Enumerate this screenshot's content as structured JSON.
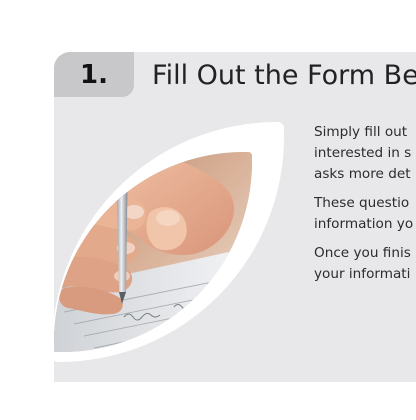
{
  "step": {
    "number": "1.",
    "title": "Fill Out the Form Be"
  },
  "image": {
    "description_icon": "hand-writing-with-pen-image"
  },
  "paragraphs": [
    {
      "lines": [
        "Simply fill out",
        "interested in s",
        "asks more det"
      ]
    },
    {
      "lines": [
        "These questio",
        "information yo"
      ]
    },
    {
      "lines": [
        "Once you finis",
        "your informati"
      ]
    }
  ],
  "colors": {
    "card_background": "#e8e8ea",
    "badge_background": "#c8c8ca",
    "text": "#2b2b30"
  }
}
